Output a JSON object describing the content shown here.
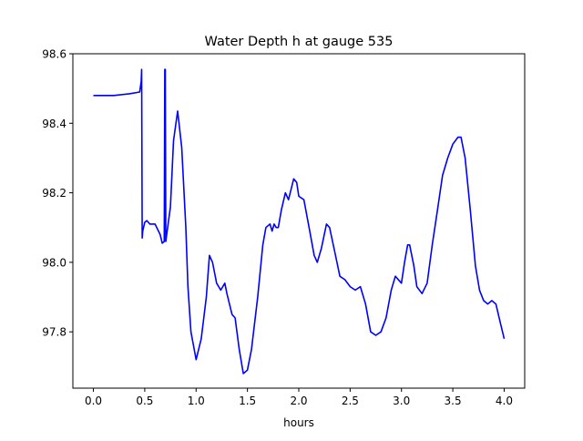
{
  "chart_data": {
    "type": "line",
    "title": "Water Depth h at gauge 535",
    "xlabel": "hours",
    "ylabel": "",
    "xlim": [
      -0.2,
      4.2
    ],
    "ylim": [
      97.638,
      98.6
    ],
    "xticks": [
      0.0,
      0.5,
      1.0,
      1.5,
      2.0,
      2.5,
      3.0,
      3.5,
      4.0
    ],
    "xtick_labels": [
      "0.0",
      "0.5",
      "1.0",
      "1.5",
      "2.0",
      "2.5",
      "3.0",
      "3.5",
      "4.0"
    ],
    "yticks": [
      97.8,
      98.0,
      98.2,
      98.4,
      98.6
    ],
    "ytick_labels": [
      "97.8",
      "98.0",
      "98.2",
      "98.4",
      "98.6"
    ],
    "grid": false,
    "series": [
      {
        "name": "h",
        "color": "#0000ff",
        "x": [
          0.0,
          0.2,
          0.35,
          0.45,
          0.465,
          0.47,
          0.475,
          0.48,
          0.5,
          0.52,
          0.55,
          0.6,
          0.65,
          0.67,
          0.69,
          0.695,
          0.7,
          0.705,
          0.75,
          0.78,
          0.82,
          0.86,
          0.9,
          0.92,
          0.95,
          1.0,
          1.05,
          1.1,
          1.13,
          1.16,
          1.2,
          1.24,
          1.28,
          1.3,
          1.35,
          1.38,
          1.42,
          1.46,
          1.5,
          1.54,
          1.6,
          1.65,
          1.68,
          1.72,
          1.74,
          1.76,
          1.78,
          1.8,
          1.83,
          1.87,
          1.9,
          1.95,
          1.98,
          2.0,
          2.05,
          2.1,
          2.15,
          2.18,
          2.22,
          2.27,
          2.3,
          2.35,
          2.4,
          2.45,
          2.5,
          2.55,
          2.6,
          2.65,
          2.7,
          2.75,
          2.8,
          2.85,
          2.9,
          2.94,
          3.0,
          3.03,
          3.06,
          3.08,
          3.12,
          3.15,
          3.2,
          3.25,
          3.3,
          3.35,
          3.4,
          3.45,
          3.5,
          3.55,
          3.58,
          3.62,
          3.67,
          3.72,
          3.76,
          3.8,
          3.84,
          3.88,
          3.92,
          3.96,
          4.0
        ],
        "y": [
          98.48,
          98.48,
          98.485,
          98.49,
          98.52,
          98.555,
          98.07,
          98.09,
          98.115,
          98.12,
          98.11,
          98.11,
          98.08,
          98.055,
          98.06,
          98.555,
          98.555,
          98.06,
          98.16,
          98.35,
          98.435,
          98.33,
          98.1,
          97.93,
          97.8,
          97.72,
          97.78,
          97.9,
          98.02,
          98.0,
          97.94,
          97.92,
          97.94,
          97.91,
          97.85,
          97.84,
          97.75,
          97.68,
          97.69,
          97.75,
          97.9,
          98.05,
          98.1,
          98.11,
          98.09,
          98.11,
          98.1,
          98.1,
          98.15,
          98.2,
          98.18,
          98.24,
          98.23,
          98.19,
          98.18,
          98.1,
          98.02,
          98.0,
          98.04,
          98.11,
          98.1,
          98.03,
          97.96,
          97.95,
          97.93,
          97.92,
          97.93,
          97.88,
          97.8,
          97.79,
          97.8,
          97.84,
          97.92,
          97.96,
          97.94,
          98.0,
          98.05,
          98.05,
          97.99,
          97.93,
          97.91,
          97.94,
          98.05,
          98.15,
          98.25,
          98.3,
          98.34,
          98.36,
          98.36,
          98.3,
          98.15,
          97.99,
          97.92,
          97.89,
          97.88,
          97.89,
          97.88,
          97.83,
          97.78
        ]
      }
    ]
  }
}
